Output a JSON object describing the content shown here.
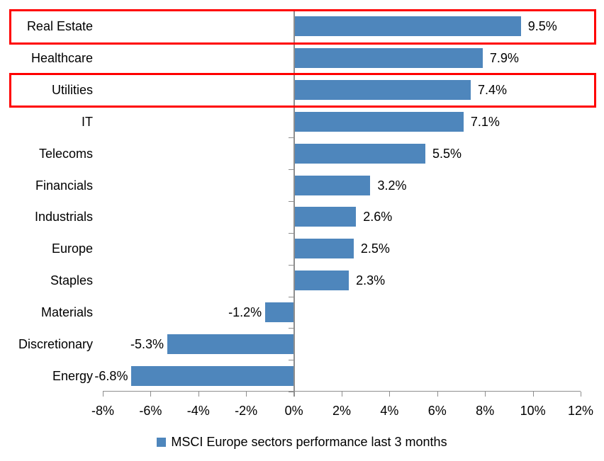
{
  "chart_data": {
    "type": "bar",
    "orientation": "horizontal",
    "title": "",
    "categories": [
      "Real Estate",
      "Healthcare",
      "Utilities",
      "IT",
      "Telecoms",
      "Financials",
      "Industrials",
      "Europe",
      "Staples",
      "Materials",
      "Discretionary",
      "Energy"
    ],
    "values": [
      9.5,
      7.9,
      7.4,
      7.1,
      5.5,
      3.2,
      2.6,
      2.5,
      2.3,
      -1.2,
      -5.3,
      -6.8
    ],
    "data_labels": [
      "9.5%",
      "7.9%",
      "7.4%",
      "7.1%",
      "5.5%",
      "3.2%",
      "2.6%",
      "2.5%",
      "2.3%",
      "-1.2%",
      "-5.3%",
      "-6.8%"
    ],
    "x_tick_labels": [
      "-8%",
      "-6%",
      "-4%",
      "-2%",
      "0%",
      "2%",
      "4%",
      "6%",
      "8%",
      "10%",
      "12%"
    ],
    "x_tick_values": [
      -8,
      -6,
      -4,
      -2,
      0,
      2,
      4,
      6,
      8,
      10,
      12
    ],
    "xlim": [
      -8,
      12
    ],
    "grid": false,
    "legend": {
      "label": "MSCI Europe sectors performance last 3 months",
      "position": "bottom"
    },
    "highlighted_categories": [
      "Real Estate",
      "Utilities"
    ],
    "colors": {
      "bar": "#4e86bc",
      "axis": "#8e8e8e",
      "highlight_box": "#ff0000",
      "text": "#000000"
    }
  }
}
